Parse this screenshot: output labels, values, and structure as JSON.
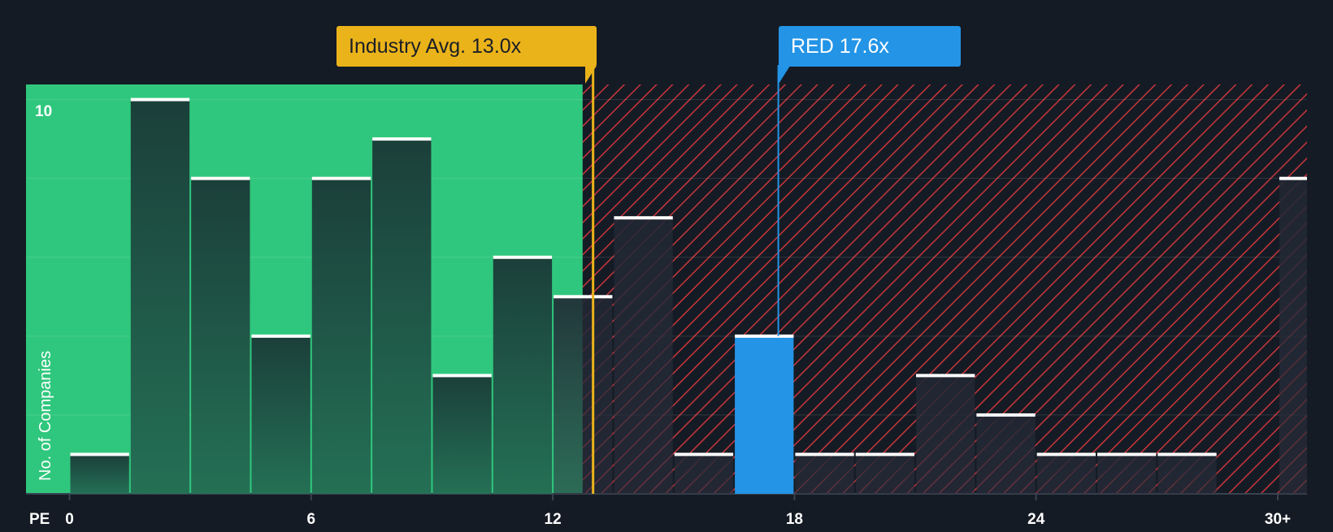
{
  "chart_data": {
    "type": "bar",
    "x_axis_label": "PE",
    "y_axis_label": "No. of Companies",
    "y_tick_labels": [
      "10"
    ],
    "x_tick_labels": [
      "0",
      "6",
      "12",
      "18",
      "24",
      "30+"
    ],
    "x_tick_values": [
      0,
      6,
      12,
      18,
      24,
      30
    ],
    "ylim": [
      0,
      10.3
    ],
    "bin_width": 1.5,
    "bins": [
      {
        "start": 0.0,
        "value": 1
      },
      {
        "start": 1.5,
        "value": 10
      },
      {
        "start": 3.0,
        "value": 8
      },
      {
        "start": 4.5,
        "value": 4
      },
      {
        "start": 6.0,
        "value": 8
      },
      {
        "start": 7.5,
        "value": 9
      },
      {
        "start": 9.0,
        "value": 3
      },
      {
        "start": 10.5,
        "value": 6
      },
      {
        "start": 12.0,
        "value": 5
      },
      {
        "start": 13.5,
        "value": 7
      },
      {
        "start": 15.0,
        "value": 1
      },
      {
        "start": 16.5,
        "value": 4,
        "highlight": true
      },
      {
        "start": 18.0,
        "value": 1
      },
      {
        "start": 19.5,
        "value": 1
      },
      {
        "start": 21.0,
        "value": 3
      },
      {
        "start": 22.5,
        "value": 2
      },
      {
        "start": 24.0,
        "value": 1
      },
      {
        "start": 25.5,
        "value": 1
      },
      {
        "start": 27.0,
        "value": 1
      },
      {
        "start": 30.0,
        "value": 8
      }
    ],
    "industry_avg": {
      "label": "Industry Avg. 13.0x",
      "value": 13.0
    },
    "company": {
      "label": "RED 17.6x",
      "value": 17.6
    },
    "fair_zone_end": 12.5,
    "grid": true,
    "colors": {
      "background": "#151b24",
      "fair_zone": "#2fc77d",
      "bar_in_fair": "#1f4a42",
      "bar_in_expensive": "#232a36",
      "hatch": "#c8363c",
      "highlight_bar": "#2394e6",
      "industry_line": "#ebb31a",
      "company_line": "#2394e6",
      "bar_cap": "#ffffff",
      "axis_text": "#ffffff"
    }
  }
}
